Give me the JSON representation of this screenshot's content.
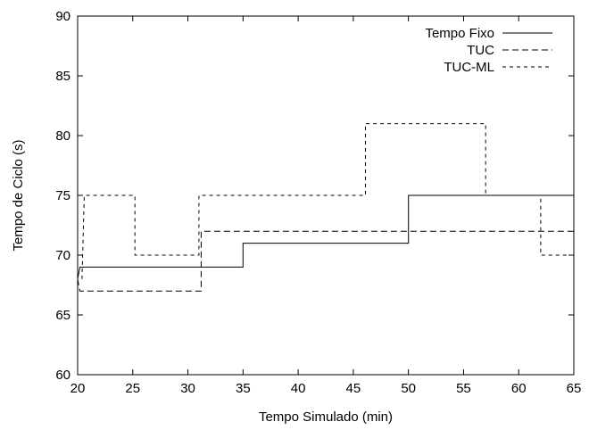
{
  "chart_data": {
    "type": "line",
    "xlabel": "Tempo Simulado (min)",
    "ylabel": "Tempo de Ciclo (s)",
    "xlim": [
      20,
      65
    ],
    "ylim": [
      60,
      90
    ],
    "xticks": [
      "20",
      "25",
      "30",
      "35",
      "40",
      "45",
      "50",
      "55",
      "60",
      "65"
    ],
    "yticks": [
      "60",
      "65",
      "70",
      "75",
      "80",
      "85",
      "90"
    ],
    "grid": false,
    "legend_position": "top-right",
    "series": [
      {
        "name": "Tempo Fixo",
        "style": "solid",
        "x": [
          20,
          20.2,
          35,
          35,
          50,
          50,
          65
        ],
        "y": [
          68,
          69,
          69,
          71,
          71,
          75,
          75
        ]
      },
      {
        "name": "TUC",
        "style": "dashed",
        "x": [
          20,
          20.2,
          31.2,
          31.2,
          65
        ],
        "y": [
          68,
          67,
          67,
          72,
          72
        ]
      },
      {
        "name": "TUC-ML",
        "style": "dotted",
        "x": [
          20.4,
          20.6,
          25.2,
          25.2,
          31,
          31,
          46.1,
          46.1,
          57,
          57,
          62,
          62,
          65
        ],
        "y": [
          68,
          75,
          75,
          70,
          70,
          75,
          75,
          81,
          81,
          75,
          75,
          70,
          70
        ]
      }
    ]
  }
}
